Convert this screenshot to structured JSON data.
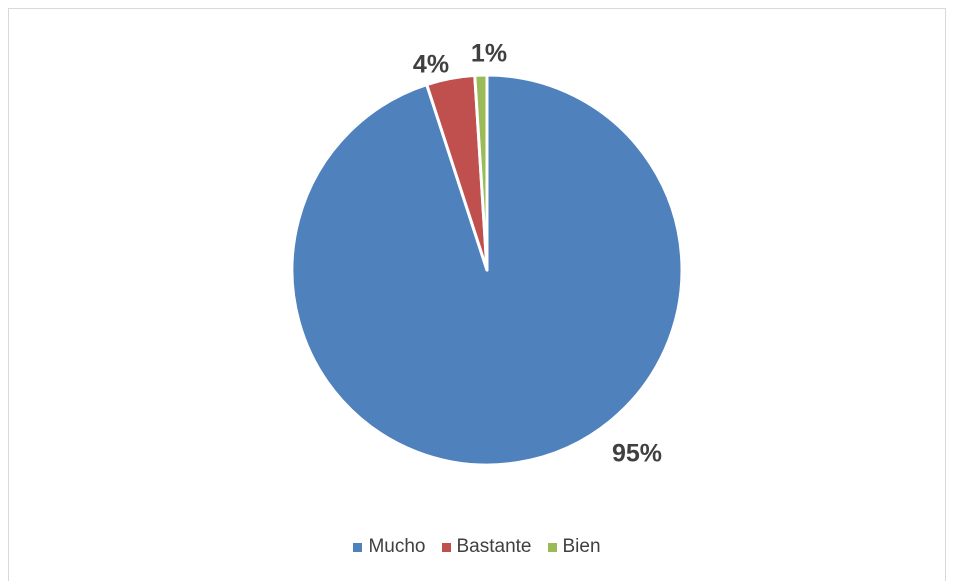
{
  "chart_data": {
    "type": "pie",
    "title": "",
    "slices": [
      {
        "label": "Mucho",
        "value": 95,
        "display": "95%",
        "color": "#4f81bd"
      },
      {
        "label": "Bastante",
        "value": 4,
        "display": "4%",
        "color": "#c0504d"
      },
      {
        "label": "Bien",
        "value": 1,
        "display": "1%",
        "color": "#9bbb59"
      }
    ],
    "start_angle_deg": 0,
    "direction": "clockwise",
    "legend_position": "bottom"
  }
}
